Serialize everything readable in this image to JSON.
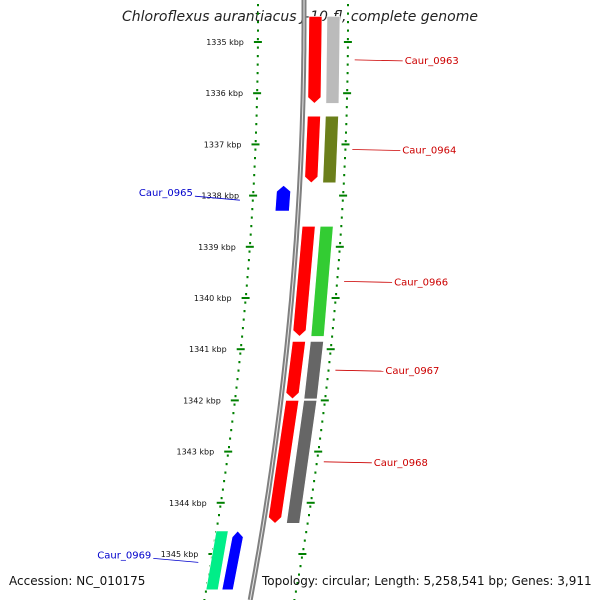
{
  "title": "Chloroflexus aurantiacus J-10-fl, complete genome",
  "accession": "Accession: NC_010175",
  "summary": "Topology: circular; Length: 5,258,541 bp; Genes: 3,911",
  "colors": {
    "backbone": "#808080",
    "forward_strand": "#ff0000",
    "ruler_dots": "#008000",
    "label_forward": "#cc0000",
    "label_reverse": "#0000cc"
  },
  "ticks": [
    {
      "kbp": 1335,
      "label": "1335 kbp"
    },
    {
      "kbp": 1336,
      "label": "1336 kbp"
    },
    {
      "kbp": 1337,
      "label": "1337 kbp"
    },
    {
      "kbp": 1338,
      "label": "1338 kbp"
    },
    {
      "kbp": 1339,
      "label": "1339 kbp"
    },
    {
      "kbp": 1340,
      "label": "1340 kbp"
    },
    {
      "kbp": 1341,
      "label": "1341 kbp"
    },
    {
      "kbp": 1342,
      "label": "1342 kbp"
    },
    {
      "kbp": 1343,
      "label": "1343 kbp"
    },
    {
      "kbp": 1344,
      "label": "1344 kbp"
    },
    {
      "kbp": 1345,
      "label": "1345 kbp"
    }
  ],
  "genes": [
    {
      "label": "Caur_0963",
      "strand": "forward",
      "start_kbp": 1334.5,
      "end_kbp": 1336.2,
      "cog_color": "#bbbbbb"
    },
    {
      "label": "Caur_0964",
      "strand": "forward",
      "start_kbp": 1336.45,
      "end_kbp": 1337.75,
      "cog_color": "#6b7f1a"
    },
    {
      "label": "Caur_0965",
      "strand": "reverse",
      "start_kbp": 1337.8,
      "end_kbp": 1338.3,
      "cog_color": "#0000ff"
    },
    {
      "label": "Caur_0966",
      "strand": "forward",
      "start_kbp": 1338.6,
      "end_kbp": 1340.75,
      "cog_color": "#33cc33"
    },
    {
      "label": "Caur_0967",
      "strand": "forward",
      "start_kbp": 1340.85,
      "end_kbp": 1341.97,
      "cog_color": "#666666"
    },
    {
      "label": "Caur_0968",
      "strand": "forward",
      "start_kbp": 1342.0,
      "end_kbp": 1344.4,
      "cog_color": "#666666"
    },
    {
      "label": "Caur_0969",
      "strand": "reverse",
      "start_kbp": 1344.55,
      "end_kbp": 1345.7,
      "cog_color": "#00ee88",
      "extra_color": "#0000ff"
    }
  ]
}
